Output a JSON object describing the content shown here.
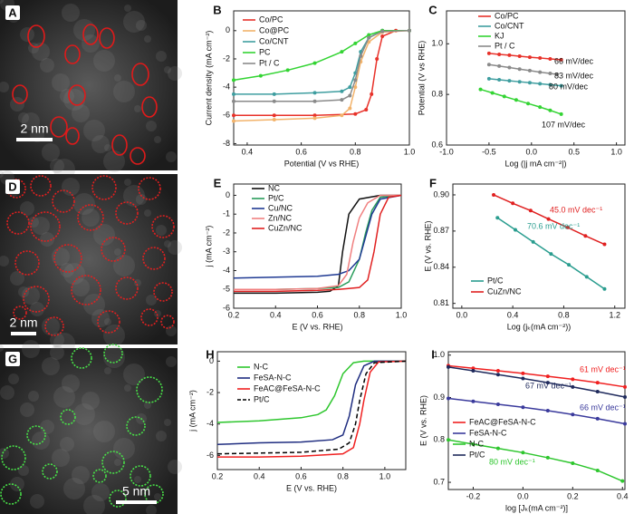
{
  "chart_data": [
    {
      "type": "image",
      "label": "A",
      "scale_bar": "2 nm"
    },
    {
      "type": "line",
      "label": "B",
      "xlabel": "Potential (V vs RHE)",
      "ylabel": "Current density (mA cm⁻²)",
      "xlim": [
        0.35,
        1.0
      ],
      "ylim": [
        -8.1,
        1.4
      ],
      "xticks": [
        0.4,
        0.6,
        0.8,
        {
          "value": 1,
          "label": "1.0"
        }
      ],
      "yticks": [
        0,
        -2,
        -4,
        -6,
        -8
      ],
      "series": [
        {
          "name": "Co/PC",
          "color": "#e8322a",
          "x": [
            0.35,
            0.5,
            0.65,
            0.8,
            0.84,
            0.86,
            0.88,
            0.9,
            0.95,
            1.0
          ],
          "values": [
            -6.0,
            -6.0,
            -6.0,
            -5.9,
            -5.6,
            -4.5,
            -2,
            -0.4,
            0,
            0
          ]
        },
        {
          "name": "Co@PC",
          "color": "#f2b36b",
          "x": [
            0.35,
            0.5,
            0.65,
            0.75,
            0.78,
            0.8,
            0.82,
            0.85,
            0.9,
            1.0
          ],
          "values": [
            -6.4,
            -6.3,
            -6.2,
            -6.0,
            -5.5,
            -4,
            -2.2,
            -0.8,
            -0.1,
            0
          ]
        },
        {
          "name": "Co/CNT",
          "color": "#3f9ea0",
          "x": [
            0.35,
            0.5,
            0.65,
            0.75,
            0.78,
            0.8,
            0.82,
            0.85,
            0.9,
            1.0
          ],
          "values": [
            -4.5,
            -4.5,
            -4.4,
            -4.3,
            -4.0,
            -3.0,
            -1.5,
            -0.5,
            0,
            0
          ]
        },
        {
          "name": "PC",
          "color": "#33d433",
          "x": [
            0.35,
            0.45,
            0.55,
            0.65,
            0.75,
            0.8,
            0.85,
            0.9,
            1.0
          ],
          "values": [
            -3.5,
            -3.2,
            -2.8,
            -2.3,
            -1.5,
            -0.9,
            -0.3,
            0,
            0
          ]
        },
        {
          "name": "Pt / C",
          "color": "#8a8a8a",
          "x": [
            0.35,
            0.5,
            0.65,
            0.75,
            0.78,
            0.8,
            0.82,
            0.85,
            0.9,
            1.0
          ],
          "values": [
            -5.0,
            -5.0,
            -5.0,
            -4.9,
            -4.6,
            -3.5,
            -1.8,
            -0.5,
            -0.05,
            0
          ]
        }
      ]
    },
    {
      "type": "line",
      "label": "C",
      "xlabel": "Log (|j mA cm⁻²|)",
      "ylabel": "Potential (V vs RHE)",
      "xlim": [
        -1,
        1.1
      ],
      "ylim": [
        0.6,
        1.13
      ],
      "xticks": [
        {
          "value": -1,
          "label": "-1.0"
        },
        -0.5,
        {
          "value": 0,
          "label": "0.0"
        },
        0.5,
        {
          "value": 1,
          "label": "1.0"
        }
      ],
      "yticks": [
        0.6,
        0.8,
        {
          "value": 1,
          "label": "1.0"
        }
      ],
      "series": [
        {
          "name": "Co/PC",
          "color": "#e8322a",
          "x": [
            -0.5,
            -0.38,
            -0.26,
            -0.14,
            -0.02,
            0.1,
            0.22,
            0.35
          ],
          "values": [
            0.962,
            0.958,
            0.955,
            0.951,
            0.947,
            0.944,
            0.94,
            0.937
          ]
        },
        {
          "name": "Co/CNT",
          "color": "#3f9ea0",
          "x": [
            -0.5,
            -0.38,
            -0.26,
            -0.14,
            -0.02,
            0.1,
            0.22,
            0.35
          ],
          "values": [
            0.862,
            0.858,
            0.854,
            0.85,
            0.846,
            0.842,
            0.838,
            0.834
          ]
        },
        {
          "name": "KJ",
          "color": "#33d433",
          "x": [
            -0.6,
            -0.46,
            -0.32,
            -0.18,
            -0.04,
            0.1,
            0.22,
            0.35
          ],
          "values": [
            0.82,
            0.806,
            0.792,
            0.778,
            0.764,
            0.75,
            0.737,
            0.722
          ]
        },
        {
          "name": "Pt / C",
          "color": "#8a8a8a",
          "x": [
            -0.5,
            -0.38,
            -0.26,
            -0.14,
            -0.02,
            0.1,
            0.22,
            0.3
          ],
          "values": [
            0.918,
            0.912,
            0.906,
            0.9,
            0.894,
            0.888,
            0.883,
            0.879
          ]
        }
      ],
      "annotations": [
        "66 mV/dec",
        "83 mV/dec",
        "80 mV/dec",
        "107 mV/dec"
      ]
    },
    {
      "type": "image",
      "label": "D",
      "scale_bar": "2 nm"
    },
    {
      "type": "line",
      "label": "E",
      "xlabel": "E (V vs. RHE)",
      "ylabel": "j (mA cm⁻²)",
      "xlim": [
        0.2,
        1.0
      ],
      "ylim": [
        -6,
        0.6
      ],
      "xticks": [
        0.2,
        0.4,
        0.6,
        0.8,
        {
          "value": 1,
          "label": "1.0"
        }
      ],
      "yticks": [
        0,
        -1,
        -2,
        -3,
        -4,
        -5,
        -6
      ],
      "series": [
        {
          "name": "NC",
          "color": "#111111",
          "x": [
            0.2,
            0.4,
            0.6,
            0.66,
            0.7,
            0.72,
            0.75,
            0.8,
            0.9,
            1.0
          ],
          "values": [
            -5.2,
            -5.2,
            -5.15,
            -5.1,
            -4.8,
            -3,
            -1,
            -0.2,
            0,
            0
          ]
        },
        {
          "name": "Pt/C",
          "color": "#2a9d5c",
          "x": [
            0.2,
            0.4,
            0.6,
            0.7,
            0.75,
            0.8,
            0.83,
            0.86,
            0.9,
            1.0
          ],
          "values": [
            -5.0,
            -5.0,
            -4.95,
            -4.9,
            -4.6,
            -3.4,
            -2,
            -0.8,
            -0.1,
            0
          ]
        },
        {
          "name": "Cu/NC",
          "color": "#1f3a93",
          "x": [
            0.2,
            0.4,
            0.6,
            0.7,
            0.75,
            0.8,
            0.83,
            0.86,
            0.9,
            1.0
          ],
          "values": [
            -4.4,
            -4.35,
            -4.3,
            -4.2,
            -4.0,
            -3.4,
            -2.2,
            -1,
            -0.2,
            0
          ]
        },
        {
          "name": "Zn/NC",
          "color": "#f08080",
          "x": [
            0.2,
            0.4,
            0.6,
            0.7,
            0.74,
            0.77,
            0.8,
            0.84,
            0.9,
            1.0
          ],
          "values": [
            -5.0,
            -5.0,
            -4.95,
            -4.8,
            -4.2,
            -2.5,
            -1.2,
            -0.4,
            0,
            0
          ]
        },
        {
          "name": "CuZn/NC",
          "color": "#e02020",
          "x": [
            0.2,
            0.4,
            0.6,
            0.7,
            0.8,
            0.84,
            0.87,
            0.9,
            0.94,
            1.0
          ],
          "values": [
            -5.1,
            -5.1,
            -5.05,
            -5.0,
            -4.9,
            -4.5,
            -3,
            -1,
            -0.1,
            0
          ]
        }
      ]
    },
    {
      "type": "line",
      "label": "F",
      "xlabel": "Log (jₖ(mA cm⁻²))",
      "ylabel": "E (V vs. RHE)",
      "xlim": [
        -0.07,
        1.28
      ],
      "ylim": [
        0.806,
        0.909
      ],
      "xticks": [
        {
          "value": 0,
          "label": "0.0"
        },
        0.4,
        0.8,
        1.2
      ],
      "yticks": [
        0.81,
        0.84,
        0.87,
        {
          "value": 0.9,
          "label": "0.90"
        }
      ],
      "series": [
        {
          "name": "Pt/C",
          "color": "#2a9d8f",
          "x": [
            0.28,
            0.42,
            0.56,
            0.7,
            0.84,
            0.98,
            1.12
          ],
          "values": [
            0.881,
            0.871,
            0.861,
            0.851,
            0.842,
            0.832,
            0.822
          ]
        },
        {
          "name": "CuZn/NC",
          "color": "#e02020",
          "x": [
            0.25,
            0.4,
            0.54,
            0.68,
            0.83,
            0.97,
            1.12
          ],
          "values": [
            0.9,
            0.893,
            0.887,
            0.88,
            0.873,
            0.866,
            0.859
          ]
        }
      ],
      "annotations": [
        "45.0 mV dec⁻¹",
        "70.6 mV dec⁻¹"
      ]
    },
    {
      "type": "image",
      "label": "G",
      "scale_bar": "5 nm"
    },
    {
      "type": "line",
      "label": "H",
      "xlabel": "E (V vs. RHE)",
      "ylabel": "j (mA cm⁻²)",
      "xlim": [
        0.2,
        1.1
      ],
      "ylim": [
        -6.9,
        0.6
      ],
      "xticks": [
        0.2,
        0.4,
        0.6,
        0.8,
        {
          "value": 1,
          "label": "1.0"
        }
      ],
      "yticks": [
        0,
        -2,
        -4,
        -6
      ],
      "series": [
        {
          "name": "N-C",
          "color": "#2ec62e",
          "x": [
            0.2,
            0.4,
            0.6,
            0.68,
            0.72,
            0.76,
            0.8,
            0.85,
            0.9,
            1.1
          ],
          "values": [
            -3.9,
            -3.8,
            -3.6,
            -3.4,
            -3.1,
            -2.2,
            -0.8,
            -0.1,
            0,
            0
          ]
        },
        {
          "name": "FeSA-N-C",
          "color": "#1f2d80",
          "x": [
            0.2,
            0.4,
            0.6,
            0.75,
            0.8,
            0.83,
            0.86,
            0.9,
            0.95,
            1.1
          ],
          "values": [
            -5.3,
            -5.2,
            -5.15,
            -5.0,
            -4.7,
            -3.5,
            -1.5,
            -0.3,
            0,
            0
          ]
        },
        {
          "name": "FeAC@FeSA-N-C",
          "color": "#f02020",
          "x": [
            0.2,
            0.4,
            0.6,
            0.8,
            0.85,
            0.88,
            0.9,
            0.93,
            0.97,
            1.1
          ],
          "values": [
            -6.1,
            -6.1,
            -6.05,
            -5.9,
            -5.5,
            -4,
            -2.5,
            -0.7,
            -0.05,
            0
          ]
        },
        {
          "name": "Pt/C",
          "color": "#000000",
          "dash": true,
          "x": [
            0.2,
            0.4,
            0.6,
            0.78,
            0.83,
            0.86,
            0.88,
            0.91,
            0.95,
            1.1
          ],
          "values": [
            -5.9,
            -5.85,
            -5.8,
            -5.6,
            -5.2,
            -4,
            -2.5,
            -0.8,
            -0.1,
            0
          ]
        }
      ]
    },
    {
      "type": "line",
      "label": "I",
      "xlabel": "log [Jₖ(mA cm⁻²)]",
      "ylabel": "E (V vs. RHE)",
      "xlim": [
        -0.3,
        0.41
      ],
      "ylim": [
        0.683,
        1.008
      ],
      "xticks": [
        -0.2,
        {
          "value": 0,
          "label": "0.0"
        },
        0.2,
        0.4
      ],
      "yticks": [
        {
          "value": 1,
          "label": "1.0"
        },
        0.9,
        0.8,
        0.7
      ],
      "series": [
        {
          "name": "FeAC@FeSA-N-C",
          "color": "#f02020",
          "x": [
            -0.3,
            -0.2,
            -0.1,
            0,
            0.1,
            0.2,
            0.3,
            0.41
          ],
          "values": [
            0.975,
            0.969,
            0.963,
            0.957,
            0.95,
            0.943,
            0.935,
            0.925
          ]
        },
        {
          "name": "FeSA-N-C",
          "color": "#3a3a9c",
          "x": [
            -0.3,
            -0.2,
            -0.1,
            0,
            0.1,
            0.2,
            0.3,
            0.41
          ],
          "values": [
            0.898,
            0.891,
            0.884,
            0.877,
            0.869,
            0.86,
            0.85,
            0.838
          ]
        },
        {
          "name": "N-C",
          "color": "#2ec62e",
          "x": [
            -0.3,
            -0.2,
            -0.1,
            0,
            0.1,
            0.2,
            0.3,
            0.4
          ],
          "values": [
            0.8,
            0.79,
            0.78,
            0.77,
            0.758,
            0.745,
            0.728,
            0.703
          ]
        },
        {
          "name": "Pt/C",
          "color": "#1f2a5c",
          "x": [
            -0.3,
            -0.2,
            -0.1,
            0,
            0.1,
            0.2,
            0.3,
            0.41
          ],
          "values": [
            0.972,
            0.963,
            0.954,
            0.945,
            0.935,
            0.925,
            0.914,
            0.901
          ]
        }
      ],
      "annotations": [
        "61 mV dec⁻¹",
        "67 mV dec⁻¹",
        "66 mV dec⁻¹",
        "80 mV dec⁻¹"
      ]
    }
  ]
}
